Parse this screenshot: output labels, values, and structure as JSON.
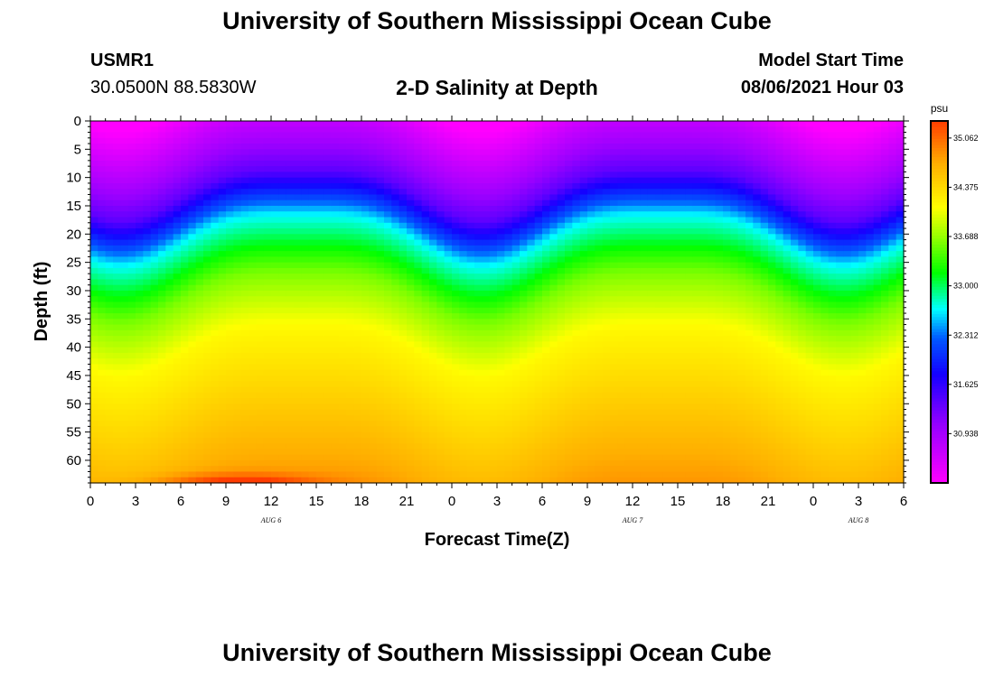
{
  "header": {
    "title": "University of Southern Mississippi Ocean Cube",
    "station_id": "USMR1",
    "coordinates": "30.0500N  88.5830W",
    "subtitle": "2-D Salinity at Depth",
    "model_start_label": "Model Start Time",
    "model_start_value": "08/06/2021 Hour 03"
  },
  "footer": {
    "title": "University of Southern Mississippi Ocean Cube"
  },
  "chart_data": {
    "type": "heatmap",
    "title": "2-D Salinity at Depth",
    "xlabel": "Forecast Time(Z)",
    "ylabel": "Depth (ft)",
    "xlim": [
      0,
      54
    ],
    "ylim": [
      64,
      0
    ],
    "x_ticks": [
      0,
      3,
      6,
      9,
      12,
      15,
      18,
      21,
      24,
      27,
      30,
      33,
      36,
      39,
      42,
      45,
      48,
      51,
      54
    ],
    "x_tick_labels": [
      "0",
      "3",
      "6",
      "9",
      "12",
      "15",
      "18",
      "21",
      "0",
      "3",
      "6",
      "9",
      "12",
      "15",
      "18",
      "21",
      "0",
      "3",
      "6"
    ],
    "y_ticks": [
      0,
      5,
      10,
      15,
      20,
      25,
      30,
      35,
      40,
      45,
      50,
      55,
      60
    ],
    "y_tick_labels": [
      "0",
      "5",
      "10",
      "15",
      "20",
      "25",
      "30",
      "35",
      "40",
      "45",
      "50",
      "55",
      "60"
    ],
    "date_labels": [
      {
        "label": "AUG 6",
        "x": 12
      },
      {
        "label": "AUG 7",
        "x": 36
      },
      {
        "label": "AUG 8",
        "x": 51
      }
    ],
    "colorbar": {
      "unit": "psu",
      "vmin": 30.25,
      "vmax": 35.3,
      "tick_values": [
        35.062,
        34.375,
        33.688,
        33.0,
        32.312,
        31.625,
        30.938
      ],
      "tick_labels": [
        "35.062",
        "34.375",
        "33.688",
        "33.000",
        "32.312",
        "31.625",
        "30.938"
      ]
    },
    "description": "Salinity increases with depth; isohaline depth oscillates with time (shallow near 14-15Z and 14Z next day, deep near 2Z and 2Z).",
    "isohaline_depth_peaks": {
      "shallow_hours": [
        14,
        38
      ],
      "deep_hours": [
        2,
        26,
        50
      ]
    }
  }
}
